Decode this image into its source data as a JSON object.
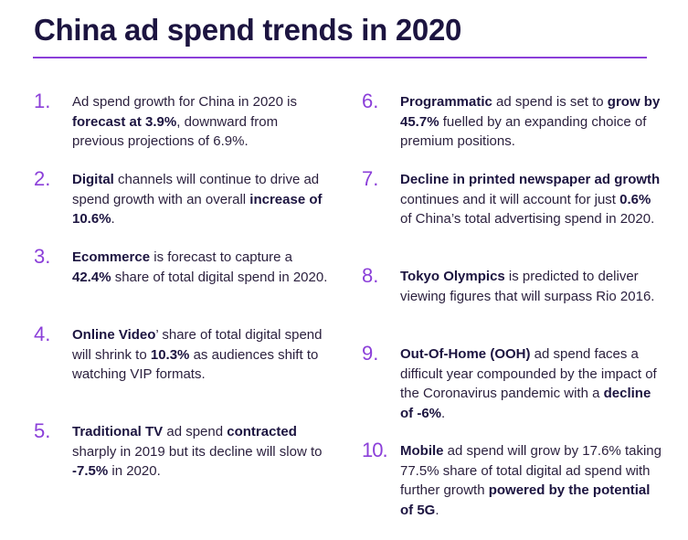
{
  "title": "China ad spend trends in 2020",
  "accent_color": "#8b3fd9",
  "items": [
    {
      "num": "1.",
      "segments": [
        {
          "t": "Ad spend growth for China in 2020 is ",
          "b": false
        },
        {
          "t": "forecast at 3.9%",
          "b": true
        },
        {
          "t": ", downward from previous projections of 6.9%.",
          "b": false
        }
      ]
    },
    {
      "num": "2.",
      "segments": [
        {
          "t": "Digital",
          "b": true
        },
        {
          "t": " channels will continue to drive ad spend growth with an overall ",
          "b": false
        },
        {
          "t": "increase of 10.6%",
          "b": true
        },
        {
          "t": ".",
          "b": false
        }
      ]
    },
    {
      "num": "3.",
      "segments": [
        {
          "t": "Ecommerce",
          "b": true
        },
        {
          "t": " is forecast to capture a ",
          "b": false
        },
        {
          "t": "42.4%",
          "b": true
        },
        {
          "t": " share of total digital spend in 2020.",
          "b": false
        }
      ]
    },
    {
      "num": "4.",
      "segments": [
        {
          "t": "Online Video",
          "b": true
        },
        {
          "t": "’ share of total digital spend will shrink to ",
          "b": false
        },
        {
          "t": "10.3%",
          "b": true
        },
        {
          "t": " as audiences shift to watching VIP formats.",
          "b": false
        }
      ]
    },
    {
      "num": "5.",
      "segments": [
        {
          "t": "Traditional TV",
          "b": true
        },
        {
          "t": " ad spend ",
          "b": false
        },
        {
          "t": "contracted",
          "b": true
        },
        {
          "t": " sharply in 2019 but its decline will slow to ",
          "b": false
        },
        {
          "t": "-7.5%",
          "b": true
        },
        {
          "t": " in 2020.",
          "b": false
        }
      ]
    },
    {
      "num": "6.",
      "segments": [
        {
          "t": "Programmatic",
          "b": true
        },
        {
          "t": " ad spend is set to ",
          "b": false
        },
        {
          "t": "grow by  45.7%",
          "b": true
        },
        {
          "t": " fuelled by an expanding choice of premium positions.",
          "b": false
        }
      ]
    },
    {
      "num": "7.",
      "segments": [
        {
          "t": "Decline in printed newspaper ad growth",
          "b": true
        },
        {
          "t": " continues and it will account for just ",
          "b": false
        },
        {
          "t": "0.6%",
          "b": true
        },
        {
          "t": " of China’s total advertising spend in 2020.",
          "b": false
        }
      ]
    },
    {
      "num": "8.",
      "segments": [
        {
          "t": "Tokyo Olympics",
          "b": true
        },
        {
          "t": " is predicted to deliver viewing figures that will surpass Rio 2016.",
          "b": false
        }
      ]
    },
    {
      "num": "9.",
      "segments": [
        {
          "t": "Out-Of-Home (OOH)",
          "b": true
        },
        {
          "t": " ad spend faces a difficult year compounded by the impact of the Coronavirus pandemic with a ",
          "b": false
        },
        {
          "t": "decline of -6%",
          "b": true
        },
        {
          "t": ".",
          "b": false
        }
      ]
    },
    {
      "num": "10.",
      "segments": [
        {
          "t": "Mobile",
          "b": true
        },
        {
          "t": " ad spend will grow by 17.6% taking 77.5% share of total digital ad spend with further growth ",
          "b": false
        },
        {
          "t": "powered by the potential of 5G",
          "b": true
        },
        {
          "t": ".",
          "b": false
        }
      ]
    }
  ]
}
